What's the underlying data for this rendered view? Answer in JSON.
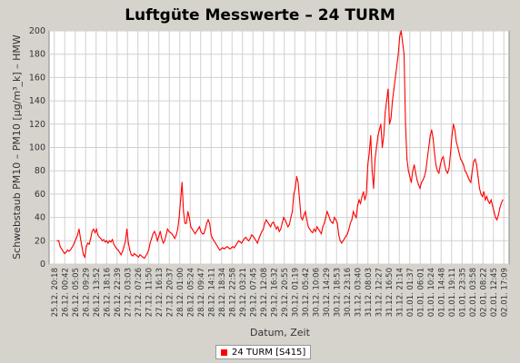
{
  "chart_data": {
    "type": "line",
    "title": "Luftgüte Messwerte – 24 TURM",
    "ylabel": "Schwebstaub PM10 – PM10 [µg/m³_k] – HMW",
    "xlabel": "Datum, Zeit",
    "ylim": [
      0,
      200
    ],
    "yticks": [
      0,
      20,
      40,
      60,
      80,
      100,
      120,
      140,
      160,
      180,
      200
    ],
    "grid": true,
    "legend_placement": "bottom-center",
    "series_color": "#ff0000",
    "xtick_labels": [
      "25.12. 20:18",
      "26.12. 00:42",
      "26.12. 05:05",
      "26.12. 09:29",
      "26.12. 13:52",
      "26.12. 18:16",
      "26.12. 22:39",
      "27.12. 03:03",
      "27.12. 07:26",
      "27.12. 11:50",
      "27.12. 16:13",
      "27.12. 20:37",
      "28.12. 01:00",
      "28.12. 05:24",
      "28.12. 09:47",
      "28.12. 14:11",
      "28.12. 18:34",
      "28.12. 22:58",
      "29.12. 03:21",
      "29.12. 07:45",
      "29.12. 12:08",
      "29.12. 16:32",
      "29.12. 20:55",
      "30.12. 01:19",
      "30.12. 05:42",
      "30.12. 10:06",
      "30.12. 14:29",
      "30.12. 18:53",
      "30.12. 23:16",
      "31.12. 03:40",
      "31.12. 08:03",
      "31.12. 12:27",
      "31.12. 16:50",
      "31.12. 21:14",
      "01.01. 01:37",
      "01.01. 06:01",
      "01.01. 10:24",
      "01.01. 14:48",
      "01.01. 19:11",
      "01.01. 23:35",
      "02.01. 03:58",
      "02.01. 08:22",
      "02.01. 12:45",
      "02.01. 17:09"
    ],
    "series": [
      {
        "name": "24 TURM [S415]",
        "values": [
          20,
          20,
          15,
          13,
          11,
          9,
          10,
          12,
          11,
          12,
          14,
          16,
          19,
          22,
          25,
          30,
          22,
          15,
          8,
          6,
          15,
          18,
          17,
          22,
          28,
          30,
          27,
          30,
          25,
          23,
          22,
          20,
          21,
          19,
          20,
          18,
          20,
          19,
          21,
          17,
          15,
          13,
          12,
          10,
          8,
          11,
          15,
          20,
          30,
          18,
          12,
          8,
          7,
          9,
          8,
          7,
          6,
          8,
          7,
          6,
          5,
          7,
          9,
          12,
          18,
          22,
          26,
          28,
          25,
          20,
          24,
          28,
          22,
          18,
          20,
          25,
          30,
          28,
          27,
          26,
          24,
          22,
          25,
          30,
          40,
          55,
          70,
          45,
          35,
          35,
          45,
          40,
          32,
          30,
          28,
          26,
          28,
          30,
          32,
          28,
          26,
          26,
          30,
          35,
          38,
          35,
          25,
          22,
          20,
          18,
          16,
          14,
          12,
          13,
          14,
          13,
          14,
          15,
          14,
          13,
          14,
          15,
          14,
          16,
          18,
          20,
          19,
          18,
          20,
          22,
          23,
          21,
          20,
          22,
          25,
          24,
          22,
          20,
          18,
          22,
          25,
          28,
          30,
          35,
          38,
          36,
          34,
          32,
          35,
          36,
          33,
          30,
          32,
          28,
          30,
          35,
          40,
          38,
          35,
          32,
          34,
          40,
          45,
          60,
          65,
          75,
          70,
          55,
          40,
          38,
          42,
          45,
          38,
          32,
          30,
          28,
          27,
          30,
          28,
          32,
          30,
          28,
          26,
          32,
          35,
          40,
          45,
          42,
          38,
          36,
          35,
          40,
          38,
          35,
          25,
          20,
          18,
          20,
          22,
          24,
          26,
          30,
          35,
          38,
          45,
          42,
          40,
          50,
          55,
          52,
          58,
          62,
          55,
          60,
          85,
          95,
          110,
          80,
          65,
          90,
          100,
          110,
          115,
          120,
          100,
          110,
          130,
          140,
          150,
          120,
          125,
          140,
          150,
          160,
          170,
          180,
          195,
          200,
          190,
          180,
          120,
          90,
          80,
          75,
          70,
          80,
          85,
          78,
          72,
          68,
          65,
          70,
          72,
          75,
          80,
          90,
          100,
          110,
          115,
          108,
          95,
          85,
          80,
          78,
          85,
          90,
          92,
          85,
          80,
          78,
          82,
          95,
          110,
          120,
          115,
          105,
          100,
          95,
          90,
          88,
          85,
          80,
          78,
          75,
          72,
          70,
          80,
          88,
          90,
          85,
          75,
          65,
          60,
          58,
          62,
          55,
          58,
          54,
          52,
          55,
          50,
          45,
          40,
          38,
          42,
          48,
          52,
          55
        ]
      }
    ]
  }
}
